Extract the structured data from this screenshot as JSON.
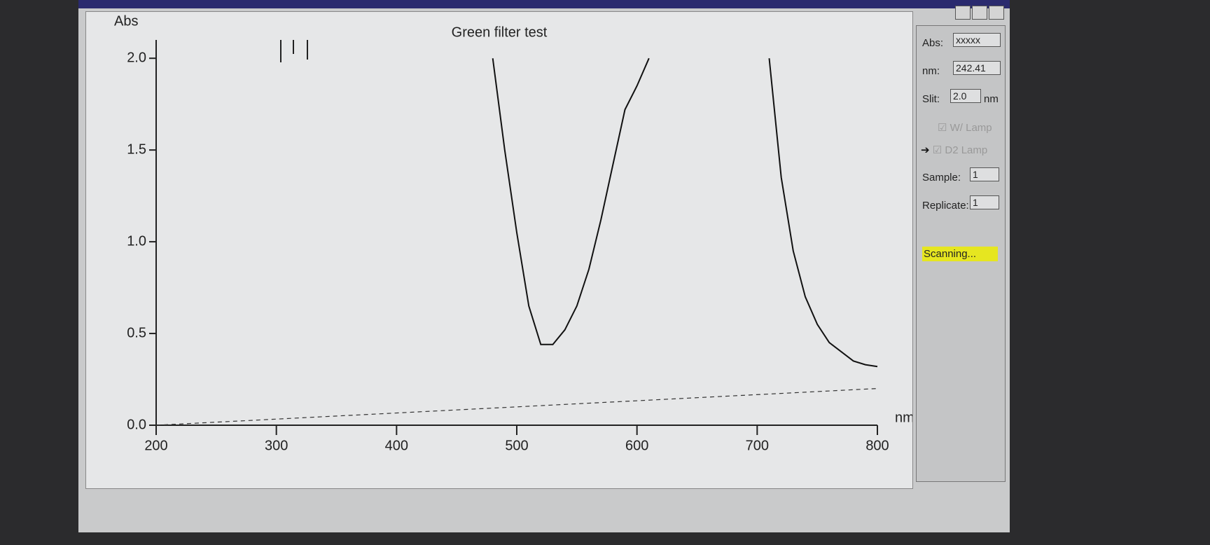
{
  "chart_data": {
    "type": "line",
    "title": "Green filter test",
    "ylabel": "Abs",
    "xlabel": "nm",
    "xlim": [
      200,
      800
    ],
    "xticks": [
      200,
      300,
      400,
      500,
      600,
      700,
      800
    ],
    "ylim": [
      0,
      2.1
    ],
    "yticks": [
      {
        "value": 0,
        "label": "0.0"
      },
      {
        "value": 0.5,
        "label": "0.5"
      },
      {
        "value": 1,
        "label": "1.0"
      },
      {
        "value": 1.5,
        "label": "1.5"
      },
      {
        "value": 2,
        "label": "2.0"
      }
    ],
    "series": [
      {
        "color": "#111111",
        "x": [
          480,
          490,
          500,
          510,
          520,
          530,
          540,
          550,
          560,
          570,
          580,
          590,
          600,
          610,
          620,
          700,
          710,
          720,
          730,
          740,
          750,
          760,
          770,
          780,
          790,
          800
        ],
        "values": [
          2.0,
          1.5,
          1.05,
          0.65,
          0.44,
          0.44,
          0.52,
          0.65,
          0.85,
          1.12,
          1.42,
          1.72,
          1.85,
          2.0,
          null,
          null,
          2.0,
          1.35,
          0.95,
          0.7,
          0.55,
          0.45,
          0.4,
          0.35,
          0.33,
          0.32
        ]
      },
      {
        "color": "#333333",
        "dashed": true,
        "x": [
          200,
          800
        ],
        "values": [
          0,
          0.2
        ]
      }
    ]
  },
  "panel": {
    "abs_label": "Abs:",
    "abs_value": "xxxxx",
    "nm_label": "nm:",
    "nm_value": "242.41",
    "slit_label": "Slit:",
    "slit_value": "2.0",
    "slit_unit": "nm",
    "lamps": [
      "W/ Lamp",
      "D2 Lamp"
    ],
    "sample_label": "Sample:",
    "sample_value": "1",
    "replicate_label": "Replicate:",
    "replicate_value": "1",
    "status": "Scanning..."
  }
}
